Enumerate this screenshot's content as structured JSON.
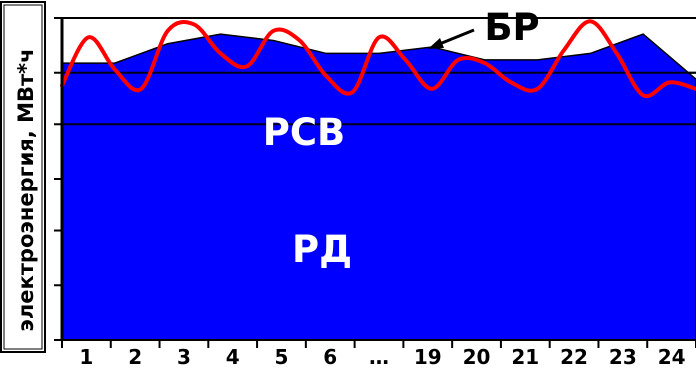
{
  "chart_data": {
    "type": "area",
    "ylabel": "электроэнергия, МВт*ч",
    "categories": [
      "1",
      "2",
      "3",
      "4",
      "5",
      "6",
      "…",
      "19",
      "20",
      "21",
      "22",
      "23",
      "24"
    ],
    "ylim": [
      0,
      100
    ],
    "grid": "horizontal",
    "series": [
      {
        "name": "РД",
        "color": "#000000",
        "x": [
          0,
          1,
          2,
          3,
          4,
          5,
          6,
          7,
          8,
          9,
          10,
          11,
          12
        ],
        "values": [
          63,
          64,
          64,
          67,
          71,
          67,
          63,
          64,
          64,
          64,
          66,
          69,
          59
        ]
      },
      {
        "name": "РСВ",
        "color": "#0000ff",
        "x": [
          0,
          1,
          2,
          3,
          4,
          5,
          6,
          7,
          8,
          9,
          10,
          11,
          12
        ],
        "values": [
          86,
          86,
          92,
          95,
          93,
          89,
          89,
          91,
          87,
          87,
          89,
          95,
          81
        ]
      },
      {
        "name": "БР",
        "color": "#ff0000",
        "x": [
          0,
          0.5,
          1,
          1.5,
          2,
          2.5,
          3,
          3.5,
          4,
          4.5,
          5,
          5.5,
          6,
          6.5,
          7,
          7.5,
          8,
          8.5,
          9,
          9.5,
          10,
          10.5,
          11,
          11.5,
          12
        ],
        "values": [
          79,
          94,
          84,
          78,
          96,
          98,
          89,
          85,
          96,
          93,
          82,
          77,
          94,
          87,
          78,
          87,
          86,
          80,
          78,
          90,
          99,
          89,
          76,
          80,
          78
        ]
      }
    ],
    "annotations": [
      "РСВ",
      "РД",
      "БР"
    ]
  }
}
